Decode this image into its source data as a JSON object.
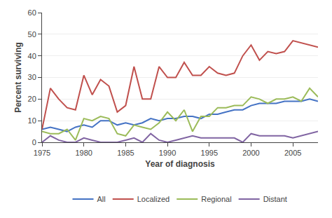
{
  "chart_data": {
    "type": "line",
    "x": [
      1975,
      1976,
      1977,
      1978,
      1979,
      1980,
      1981,
      1982,
      1983,
      1984,
      1985,
      1986,
      1987,
      1988,
      1989,
      1990,
      1991,
      1992,
      1993,
      1994,
      1995,
      1996,
      1997,
      1998,
      1999,
      2000,
      2001,
      2002,
      2003,
      2004,
      2005,
      2006,
      2007,
      2008
    ],
    "series": [
      {
        "name": "All",
        "color": "#4472c4",
        "values": [
          6,
          7,
          6,
          5,
          7,
          8,
          7,
          10,
          10,
          8,
          9,
          8,
          9,
          11,
          10,
          11,
          11,
          12,
          12,
          11,
          13,
          13,
          14,
          15,
          15,
          17,
          18,
          18,
          18,
          19,
          19,
          19,
          20,
          19
        ]
      },
      {
        "name": "Localized",
        "color": "#c0504d",
        "values": [
          6,
          25,
          20,
          16,
          15,
          31,
          22,
          29,
          26,
          14,
          17,
          35,
          20,
          20,
          35,
          30,
          30,
          37,
          31,
          31,
          35,
          32,
          31,
          32,
          40,
          45,
          38,
          42,
          41,
          42,
          47,
          46,
          45,
          44
        ]
      },
      {
        "name": "Regional",
        "color": "#9bbb59",
        "values": [
          5,
          4,
          4,
          6,
          1,
          11,
          10,
          12,
          11,
          4,
          3,
          8,
          7,
          6,
          9,
          14,
          10,
          15,
          5,
          12,
          12,
          16,
          16,
          17,
          17,
          21,
          20,
          18,
          20,
          20,
          21,
          19,
          25,
          21
        ]
      },
      {
        "name": "Distant",
        "color": "#8064a2",
        "values": [
          0,
          3,
          1,
          0,
          0,
          2,
          1,
          0,
          0,
          0,
          1,
          2,
          0,
          4,
          1,
          0,
          1,
          2,
          3,
          2,
          2,
          2,
          2,
          2,
          0,
          4,
          3,
          3,
          3,
          3,
          2,
          3,
          4,
          5
        ]
      }
    ],
    "xlabel": "Year of diagnosis",
    "ylabel": "Percent surviving",
    "xlim": [
      1975,
      2008
    ],
    "ylim": [
      0,
      60
    ],
    "xticks": [
      1975,
      1980,
      1985,
      1990,
      1995,
      2000,
      2005
    ],
    "yticks": [
      0,
      10,
      20,
      30,
      40,
      50,
      60
    ],
    "grid": "y",
    "legend": "bottom"
  }
}
